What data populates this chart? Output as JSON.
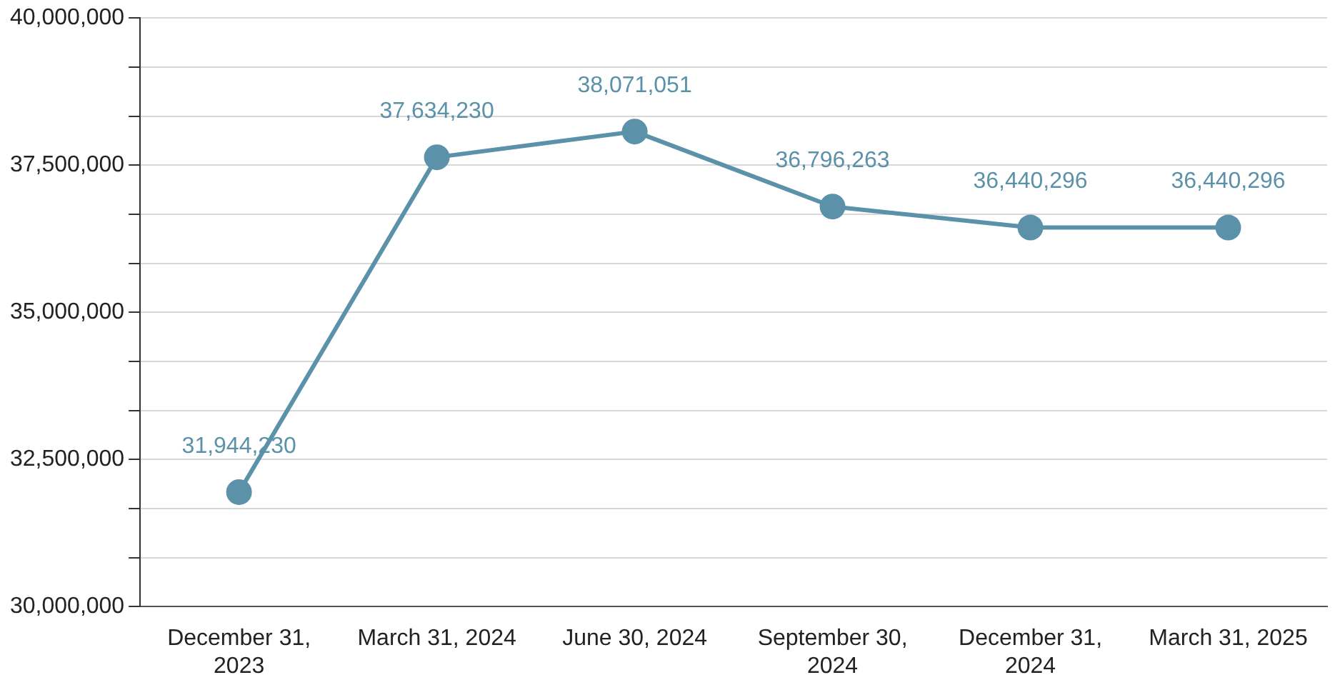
{
  "chart_data": {
    "type": "line",
    "categories": [
      "December 31, 2023",
      "March 31, 2024",
      "June 30, 2024",
      "September 30, 2024",
      "December 31, 2024",
      "March 31, 2025"
    ],
    "series": [
      {
        "color": "#5b92a9",
        "values": [
          31944230,
          37634230,
          38071051,
          36796263,
          36440296,
          36440296
        ],
        "value_labels": [
          "31,944,230",
          "37,634,230",
          "38,071,051",
          "36,796,263",
          "36,440,296",
          "36,440,296"
        ]
      }
    ],
    "ylim": [
      30000000,
      40000000
    ],
    "yticks": [
      {
        "value": 30000000,
        "label": "30,000,000"
      },
      {
        "value": 30833333,
        "label": null
      },
      {
        "value": 31666667,
        "label": null
      },
      {
        "value": 32500000,
        "label": "32,500,000"
      },
      {
        "value": 33333333,
        "label": null
      },
      {
        "value": 34166667,
        "label": null
      },
      {
        "value": 35000000,
        "label": "35,000,000"
      },
      {
        "value": 35833333,
        "label": null
      },
      {
        "value": 36666667,
        "label": null
      },
      {
        "value": 37500000,
        "label": "37,500,000"
      },
      {
        "value": 38333333,
        "label": null
      },
      {
        "value": 39166667,
        "label": null
      },
      {
        "value": 40000000,
        "label": "40,000,000"
      }
    ],
    "grid": "y",
    "legend": false,
    "marker": "circle",
    "line_style": "solid"
  }
}
